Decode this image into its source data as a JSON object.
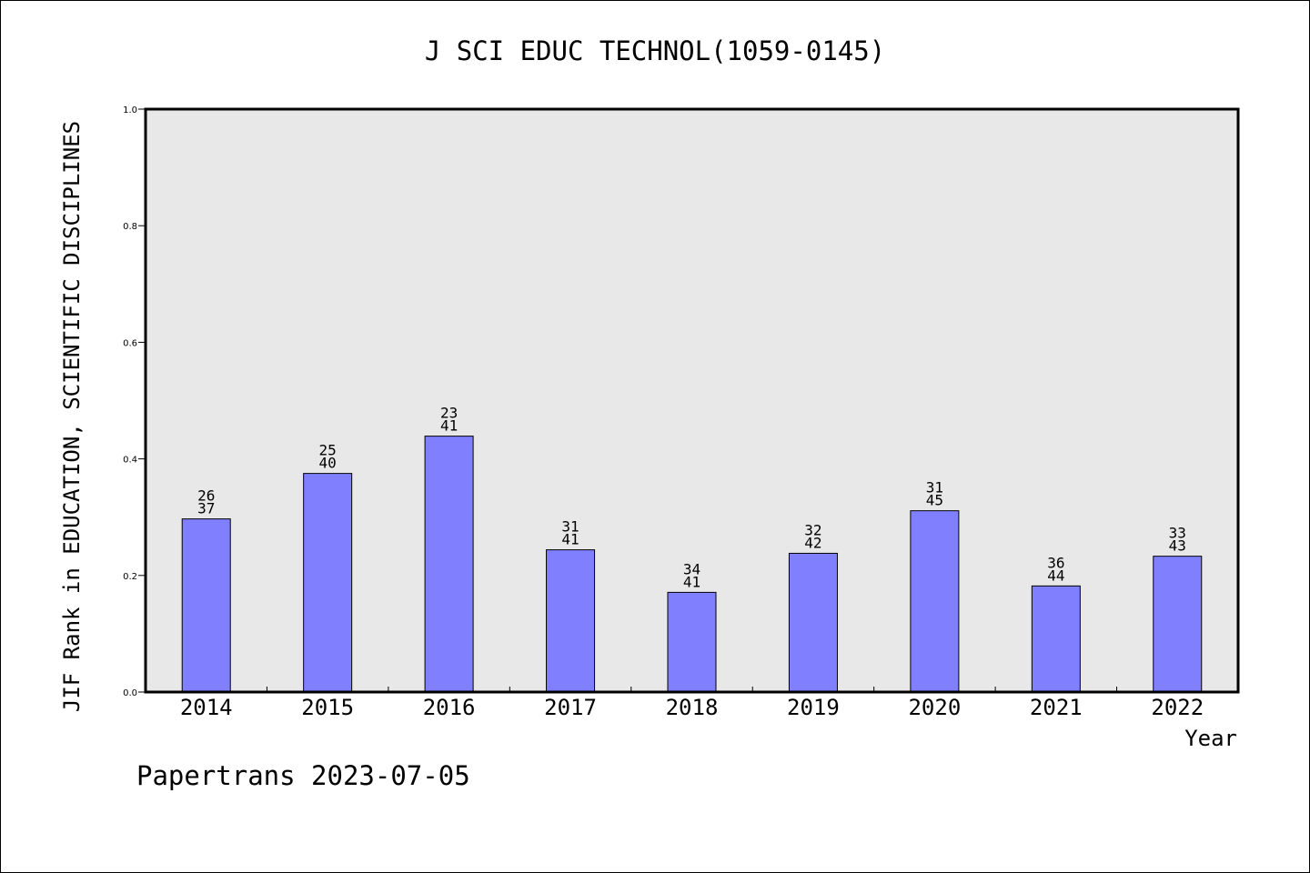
{
  "chart_data": {
    "type": "bar",
    "title": "J SCI EDUC TECHNOL(1059-0145)",
    "xlabel": "Year",
    "ylabel": "JIF Rank in EDUCATION, SCIENTIFIC DISCIPLINES",
    "ylim": [
      0,
      1.0
    ],
    "yticks": [
      "0.0",
      "0.2",
      "0.4",
      "0.6",
      "0.8",
      "1.0"
    ],
    "categories": [
      "2014",
      "2015",
      "2016",
      "2017",
      "2018",
      "2019",
      "2020",
      "2021",
      "2022"
    ],
    "values": [
      0.297,
      0.375,
      0.439,
      0.244,
      0.171,
      0.238,
      0.311,
      0.182,
      0.233
    ],
    "labels": [
      [
        "26",
        "37"
      ],
      [
        "25",
        "40"
      ],
      [
        "23",
        "41"
      ],
      [
        "31",
        "41"
      ],
      [
        "34",
        "41"
      ],
      [
        "32",
        "42"
      ],
      [
        "31",
        "45"
      ],
      [
        "36",
        "44"
      ],
      [
        "33",
        "43"
      ]
    ],
    "bar_color": "#8080ff",
    "plot_background": "#e8e8e8",
    "grid": false
  },
  "footer": "Papertrans 2023-07-05"
}
